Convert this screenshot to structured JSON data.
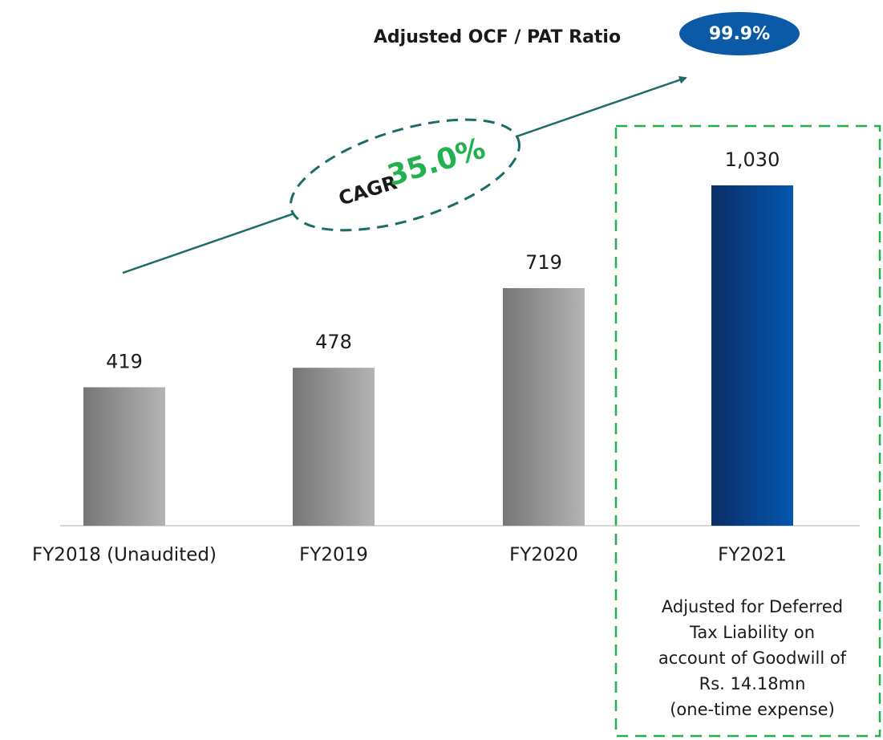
{
  "chart_data": {
    "type": "bar",
    "categories": [
      "FY2018 (Unaudited)",
      "FY2019",
      "FY2020",
      "FY2021"
    ],
    "values": [
      419,
      478,
      719,
      1030
    ],
    "value_labels": [
      "419",
      "478",
      "719",
      "1,030"
    ],
    "colors": [
      "#767676",
      "#767676",
      "#767676",
      "#0a2d66"
    ],
    "ratio_label": "Adjusted OCF / PAT Ratio",
    "ratio_value": "99.9%",
    "cagr_label": "CAGR",
    "cagr_value": "35.0%",
    "note_lines": [
      "Adjusted for Deferred",
      "Tax Liability on",
      "account of Goodwill of",
      "Rs. 14.18mn",
      "(one-time expense)"
    ]
  }
}
